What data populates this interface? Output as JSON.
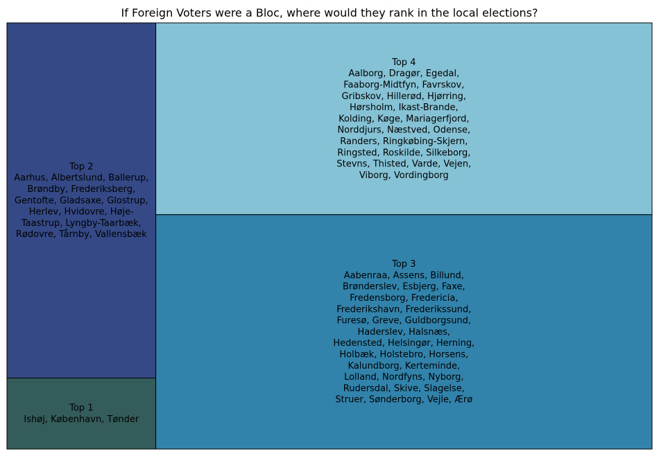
{
  "chart_data": {
    "type": "treemap",
    "title": "If Foreign Voters were a Bloc, where would they rank in the local elections?",
    "tiles": [
      {
        "name": "Top 1",
        "color": "#335c5a",
        "municipalities": [
          "Ishøj",
          "København",
          "Tønder"
        ]
      },
      {
        "name": "Top 2",
        "color": "#344985",
        "municipalities": [
          "Aarhus",
          "Albertslund",
          "Ballerup",
          "Brøndby",
          "Frederiksberg",
          "Gentofte",
          "Gladsaxe",
          "Glostrup",
          "Herlev",
          "Hvidovre",
          "Høje-Taastrup",
          "Lyngby-Taarbæk",
          "Rødovre",
          "Tårnby",
          "Vallensbæk"
        ]
      },
      {
        "name": "Top 3",
        "color": "#3283ab",
        "municipalities": [
          "Aabenraa",
          "Assens",
          "Billund",
          "Brønderslev",
          "Esbjerg",
          "Faxe",
          "Fredensborg",
          "Fredericia",
          "Frederikshavn",
          "Frederikssund",
          "Furesø",
          "Greve",
          "Guldborgsund",
          "Haderslev",
          "Halsnæs",
          "Hedensted",
          "Helsingør",
          "Herning",
          "Holbæk",
          "Holstebro",
          "Horsens",
          "Kalundborg",
          "Kerteminde",
          "Lolland",
          "Nordfyns",
          "Nyborg",
          "Rudersdal",
          "Skive",
          "Slagelse",
          "Struer",
          "Sønderborg",
          "Vejle",
          "Ærø"
        ]
      },
      {
        "name": "Top 4",
        "color": "#85c2d6",
        "municipalities": [
          "Aalborg",
          "Dragør",
          "Egedal",
          "Faaborg-Midtfyn",
          "Favrskov",
          "Gribskov",
          "Hillerød",
          "Hjørring",
          "Hørsholm",
          "Ikast-Brande",
          "Kolding",
          "Køge",
          "Mariagerfjord",
          "Norddjurs",
          "Næstved",
          "Odense",
          "Randers",
          "Ringkøbing-Skjern",
          "Ringsted",
          "Roskilde",
          "Silkeborg",
          "Stevns",
          "Thisted",
          "Varde",
          "Vejen",
          "Viborg",
          "Vordingborg"
        ]
      }
    ]
  }
}
